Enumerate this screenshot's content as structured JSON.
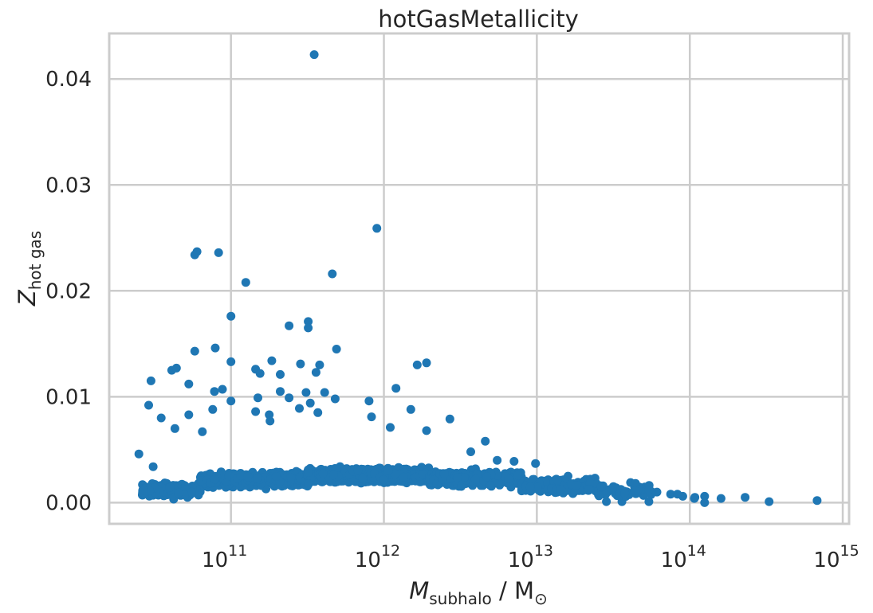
{
  "chart_data": {
    "type": "scatter",
    "title": "hotGasMetallicity",
    "xlabel": {
      "main": "M",
      "sub": "subhalo",
      "unit": " / M",
      "unit_sub": "⊙"
    },
    "ylabel": {
      "main": "Z",
      "sub": "hot gas"
    },
    "xscale": "log",
    "xlim": [
      16000000000.0,
      1100000000000000.0
    ],
    "ylim": [
      -0.002,
      0.0443
    ],
    "grid": true,
    "color": "#1f77b4",
    "x_ticks": [
      {
        "value": 100000000000.0,
        "base": "10",
        "exp": "11"
      },
      {
        "value": 1000000000000.0,
        "base": "10",
        "exp": "12"
      },
      {
        "value": 10000000000000.0,
        "base": "10",
        "exp": "13"
      },
      {
        "value": 100000000000000.0,
        "base": "10",
        "exp": "14"
      },
      {
        "value": 1000000000000000.0,
        "base": "10",
        "exp": "15"
      }
    ],
    "y_ticks": [
      {
        "value": 0.0,
        "label": "0.00"
      },
      {
        "value": 0.01,
        "label": "0.01"
      },
      {
        "value": 0.02,
        "label": "0.02"
      },
      {
        "value": 0.03,
        "label": "0.03"
      },
      {
        "value": 0.04,
        "label": "0.04"
      }
    ],
    "points": [
      [
        350000000000.0,
        0.0423
      ],
      [
        900000000000.0,
        0.0259
      ],
      [
        58000000000.0,
        0.0234
      ],
      [
        60000000000.0,
        0.0237
      ],
      [
        83000000000.0,
        0.0236
      ],
      [
        460000000000.0,
        0.0216
      ],
      [
        125000000000.0,
        0.0208
      ],
      [
        100000000000.0,
        0.0176
      ],
      [
        320000000000.0,
        0.0171
      ],
      [
        320000000000.0,
        0.0165
      ],
      [
        240000000000.0,
        0.0167
      ],
      [
        58000000000.0,
        0.0143
      ],
      [
        79000000000.0,
        0.0146
      ],
      [
        490000000000.0,
        0.0145
      ],
      [
        1900000000000.0,
        0.0132
      ],
      [
        1650000000000.0,
        0.013
      ],
      [
        100000000000.0,
        0.0133
      ],
      [
        185000000000.0,
        0.0134
      ],
      [
        285000000000.0,
        0.0131
      ],
      [
        380000000000.0,
        0.013
      ],
      [
        145000000000.0,
        0.0126
      ],
      [
        155000000000.0,
        0.0122
      ],
      [
        360000000000.0,
        0.0123
      ],
      [
        41000000000.0,
        0.0125
      ],
      [
        44000000000.0,
        0.0127
      ],
      [
        210000000000.0,
        0.0121
      ],
      [
        30000000000.0,
        0.0115
      ],
      [
        53000000000.0,
        0.0112
      ],
      [
        1200000000000.0,
        0.0108
      ],
      [
        78000000000.0,
        0.0105
      ],
      [
        88000000000.0,
        0.0107
      ],
      [
        210000000000.0,
        0.0105
      ],
      [
        310000000000.0,
        0.0104
      ],
      [
        410000000000.0,
        0.0104
      ],
      [
        100000000000.0,
        0.0096
      ],
      [
        150000000000.0,
        0.0099
      ],
      [
        240000000000.0,
        0.0099
      ],
      [
        330000000000.0,
        0.0094
      ],
      [
        480000000000.0,
        0.0098
      ],
      [
        800000000000.0,
        0.0096
      ],
      [
        29000000000.0,
        0.0092
      ],
      [
        53000000000.0,
        0.0083
      ],
      [
        76000000000.0,
        0.0088
      ],
      [
        145000000000.0,
        0.0086
      ],
      [
        178000000000.0,
        0.0083
      ],
      [
        280000000000.0,
        0.0089
      ],
      [
        370000000000.0,
        0.0085
      ],
      [
        1500000000000.0,
        0.0088
      ],
      [
        35000000000.0,
        0.008
      ],
      [
        2700000000000.0,
        0.0079
      ],
      [
        830000000000.0,
        0.0081
      ],
      [
        180000000000.0,
        0.0077
      ],
      [
        43000000000.0,
        0.007
      ],
      [
        65000000000.0,
        0.0067
      ],
      [
        1100000000000.0,
        0.0071
      ],
      [
        1900000000000.0,
        0.0068
      ],
      [
        4600000000000.0,
        0.0058
      ],
      [
        25000000000.0,
        0.0046
      ],
      [
        31000000000.0,
        0.0034
      ],
      [
        3700000000000.0,
        0.0048
      ],
      [
        5500000000000.0,
        0.004
      ],
      [
        7100000000000.0,
        0.0039
      ],
      [
        9800000000000.0,
        0.0037
      ],
      [
        16000000000000.0,
        0.0025
      ],
      [
        21000000000000.0,
        0.0022
      ],
      [
        26000000000000.0,
        0.0016
      ],
      [
        33000000000000.0,
        0.0014
      ],
      [
        41000000000000.0,
        0.0019
      ],
      [
        50000000000000.0,
        0.0013
      ],
      [
        61000000000000.0,
        0.001
      ],
      [
        75000000000000.0,
        0.0008
      ],
      [
        90000000000000.0,
        0.0006
      ],
      [
        108000000000000.0,
        0.0005
      ],
      [
        125000000000000.0,
        0.0006
      ],
      [
        160000000000000.0,
        0.0004
      ],
      [
        230000000000000.0,
        0.0005
      ],
      [
        330000000000000.0,
        0.0001
      ],
      [
        680000000000000.0,
        0.0002
      ],
      [
        125000000000000.0,
        0.0
      ],
      [
        28500000000000.0,
        0.0001
      ],
      [
        36000000000000.0,
        0.0001
      ],
      [
        54000000000000.0,
        0.0001
      ],
      [
        83000000000000.0,
        0.0008
      ],
      [
        107000000000000.0,
        0.0004
      ]
    ]
  }
}
